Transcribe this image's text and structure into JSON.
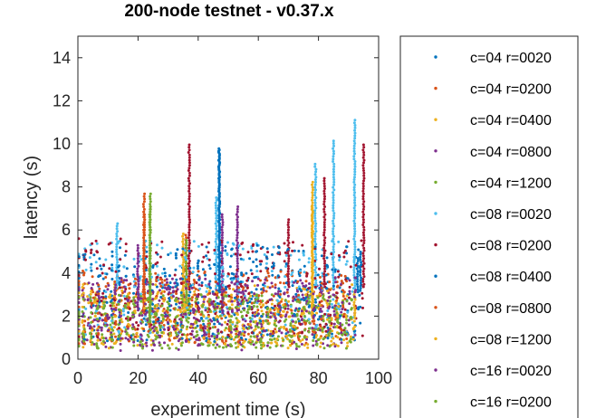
{
  "chart_data": {
    "type": "scatter",
    "title": "200-node testnet - v0.37.x",
    "xlabel": "experiment time (s)",
    "ylabel": "latency (s)",
    "xlim": [
      0,
      100
    ],
    "ylim": [
      0,
      15
    ],
    "xticks": [
      "0",
      "20",
      "40",
      "60",
      "80",
      "100"
    ],
    "yticks": [
      "0",
      "2",
      "4",
      "6",
      "8",
      "10",
      "12",
      "14"
    ],
    "grid": false,
    "legend_position": "right-outside",
    "series": [
      {
        "name": "c=04 r=0020",
        "color": "#0072BD",
        "x_range": [
          0,
          93
        ],
        "y_range": [
          0.8,
          5.2
        ],
        "peaks": [
          [
            47,
            9.8
          ],
          [
            93,
            4.8
          ]
        ]
      },
      {
        "name": "c=04 r=0200",
        "color": "#D95319",
        "x_range": [
          0,
          90
        ],
        "y_range": [
          0.8,
          4.2
        ],
        "peaks": [
          [
            22,
            7.8
          ],
          [
            36,
            5.8
          ]
        ]
      },
      {
        "name": "c=04 r=0400",
        "color": "#EDB120",
        "x_range": [
          0,
          91
        ],
        "y_range": [
          0.6,
          3.5
        ],
        "peaks": [
          [
            78,
            8.3
          ],
          [
            35,
            5.9
          ]
        ]
      },
      {
        "name": "c=04 r=0800",
        "color": "#7E2F8E",
        "x_range": [
          0,
          92
        ],
        "y_range": [
          0.4,
          3.6
        ],
        "peaks": [
          [
            48,
            6.8
          ],
          [
            53,
            7.2
          ]
        ]
      },
      {
        "name": "c=04 r=1200",
        "color": "#77AC30",
        "x_range": [
          0,
          92
        ],
        "y_range": [
          0.5,
          3.0
        ],
        "peaks": [
          [
            24,
            7.7
          ],
          [
            36,
            5.6
          ]
        ]
      },
      {
        "name": "c=08 r=0020",
        "color": "#4DBEEE",
        "x_range": [
          0,
          93
        ],
        "y_range": [
          1.0,
          5.5
        ],
        "peaks": [
          [
            92,
            11.1
          ],
          [
            85,
            10.2
          ],
          [
            79,
            9.1
          ],
          [
            13,
            6.4
          ],
          [
            46,
            7.6
          ]
        ]
      },
      {
        "name": "c=08 r=0200",
        "color": "#A2142F",
        "x_range": [
          0,
          95
        ],
        "y_range": [
          1.0,
          5.6
        ],
        "peaks": [
          [
            37,
            10.0
          ],
          [
            95,
            10.0
          ],
          [
            82,
            8.4
          ],
          [
            70,
            6.6
          ]
        ]
      },
      {
        "name": "c=08 r=0400",
        "color": "#0072BD",
        "x_range": [
          0,
          94
        ],
        "y_range": [
          0.8,
          5.3
        ],
        "peaks": [
          [
            47,
            9.8
          ],
          [
            94,
            5.0
          ]
        ]
      },
      {
        "name": "c=08 r=0800",
        "color": "#D95319",
        "x_range": [
          0,
          90
        ],
        "y_range": [
          0.7,
          3.8
        ],
        "peaks": [
          [
            22,
            6.9
          ]
        ]
      },
      {
        "name": "c=08 r=1200",
        "color": "#EDB120",
        "x_range": [
          0,
          92
        ],
        "y_range": [
          0.5,
          3.2
        ],
        "peaks": [
          [
            78,
            7.2
          ],
          [
            92,
            3.2
          ]
        ]
      },
      {
        "name": "c=16 r=0020",
        "color": "#7E2F8E",
        "x_range": [
          0,
          93
        ],
        "y_range": [
          0.6,
          3.8
        ],
        "peaks": [
          [
            20,
            5.3
          ]
        ]
      },
      {
        "name": "c=16 r=0200",
        "color": "#77AC30",
        "x_range": [
          0,
          92
        ],
        "y_range": [
          0.5,
          3.0
        ],
        "peaks": [
          [
            24,
            7.2
          ]
        ]
      }
    ]
  }
}
